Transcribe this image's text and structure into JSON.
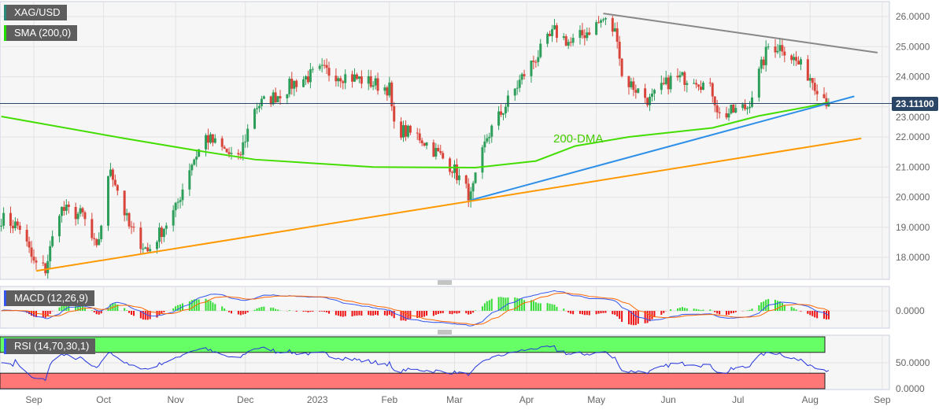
{
  "symbol": "XAG/USD",
  "indicator_sma": "SMA (200,0)",
  "indicator_macd": "MACD (12,26,9)",
  "indicator_rsi": "RSI (14,70,30,1)",
  "current_price": "23.11100",
  "annotation_dma": "200-DMA",
  "y_ticks": [
    "26.0000",
    "25.0000",
    "24.0000",
    "23.0000",
    "22.0000",
    "21.0000",
    "20.0000",
    "19.0000",
    "18.0000"
  ],
  "y_tick_values": [
    26,
    25,
    24,
    23,
    22,
    21,
    20,
    19,
    18
  ],
  "macd_ticks": [
    "0.0000"
  ],
  "rsi_ticks": [
    "50.0000",
    "0.0000"
  ],
  "x_labels": [
    {
      "t": "Sep",
      "d": "2022-09-01"
    },
    {
      "t": "Oct",
      "d": "2022-10-01"
    },
    {
      "t": "Nov",
      "d": "2022-11-01"
    },
    {
      "t": "Dec",
      "d": "2022-12-01"
    },
    {
      "t": "2023",
      "d": "2023-01-01"
    },
    {
      "t": "Feb",
      "d": "2023-02-01"
    },
    {
      "t": "Mar",
      "d": "2023-03-01"
    },
    {
      "t": "Apr",
      "d": "2023-04-01"
    },
    {
      "t": "May",
      "d": "2023-05-01"
    },
    {
      "t": "Jun",
      "d": "2023-06-01"
    },
    {
      "t": "Jul",
      "d": "2023-07-01"
    },
    {
      "t": "Aug",
      "d": "2023-08-01"
    },
    {
      "t": "Sep",
      "d": "2023-09-01"
    }
  ],
  "colors": {
    "up": "#2e9e5b",
    "down": "#d9443a",
    "sma": "#44dd00",
    "resistance": "#888888",
    "support_blue": "#2e8fe8",
    "support_orange": "#ff9900",
    "price_line": "#2b4566",
    "macd": "#3355ee",
    "signal": "#ff6600",
    "rsi_line": "#2233dd",
    "rsi_over": "#66ff66",
    "rsi_under": "#ff7777"
  },
  "chart_data": {
    "type": "candlestick",
    "price_path": [
      [
        "2022-08-18",
        19.3
      ],
      [
        "2022-08-26",
        19.0
      ],
      [
        "2022-09-01",
        17.8
      ],
      [
        "2022-09-06",
        17.6
      ],
      [
        "2022-09-12",
        19.6
      ],
      [
        "2022-09-22",
        19.4
      ],
      [
        "2022-09-28",
        18.2
      ],
      [
        "2022-10-04",
        21.0
      ],
      [
        "2022-10-12",
        19.0
      ],
      [
        "2022-10-20",
        18.2
      ],
      [
        "2022-11-01",
        19.6
      ],
      [
        "2022-11-07",
        21.0
      ],
      [
        "2022-11-14",
        22.0
      ],
      [
        "2022-11-28",
        21.2
      ],
      [
        "2022-12-05",
        23.0
      ],
      [
        "2022-12-15",
        23.4
      ],
      [
        "2022-12-22",
        23.8
      ],
      [
        "2023-01-03",
        24.2
      ],
      [
        "2023-01-20",
        23.9
      ],
      [
        "2023-02-01",
        23.6
      ],
      [
        "2023-02-03",
        22.3
      ],
      [
        "2023-02-14",
        22.0
      ],
      [
        "2023-02-28",
        21.0
      ],
      [
        "2023-03-08",
        20.0
      ],
      [
        "2023-03-15",
        22.0
      ],
      [
        "2023-03-31",
        24.1
      ],
      [
        "2023-04-13",
        25.5
      ],
      [
        "2023-04-20",
        25.1
      ],
      [
        "2023-05-04",
        25.9
      ],
      [
        "2023-05-10",
        25.4
      ],
      [
        "2023-05-12",
        24.0
      ],
      [
        "2023-05-24",
        23.2
      ],
      [
        "2023-06-02",
        23.9
      ],
      [
        "2023-06-12",
        24.0
      ],
      [
        "2023-06-20",
        23.5
      ],
      [
        "2023-06-23",
        22.7
      ],
      [
        "2023-07-05",
        23.0
      ],
      [
        "2023-07-14",
        25.0
      ],
      [
        "2023-07-20",
        25.0
      ],
      [
        "2023-08-01",
        24.0
      ],
      [
        "2023-08-09",
        23.111
      ]
    ],
    "sma200": [
      [
        "2022-08-18",
        22.68
      ],
      [
        "2022-10-10",
        21.95
      ],
      [
        "2022-11-10",
        21.55
      ],
      [
        "2022-12-05",
        21.25
      ],
      [
        "2023-01-25",
        21.0
      ],
      [
        "2023-03-10",
        20.98
      ],
      [
        "2023-04-05",
        21.2
      ],
      [
        "2023-04-22",
        21.7
      ],
      [
        "2023-05-15",
        22.0
      ],
      [
        "2023-06-20",
        22.3
      ],
      [
        "2023-07-10",
        22.7
      ],
      [
        "2023-07-31",
        23.0
      ],
      [
        "2023-08-09",
        23.15
      ]
    ],
    "trendlines": [
      {
        "id": "resistance",
        "from": [
          "2023-05-04",
          26.1
        ],
        "to": [
          "2023-08-30",
          24.8
        ],
        "color": "#888888"
      },
      {
        "id": "support-blue",
        "from": [
          "2023-03-08",
          19.9
        ],
        "to": [
          "2023-08-20",
          23.35
        ],
        "color": "#2e8fe8"
      },
      {
        "id": "support-orange",
        "from": [
          "2022-09-02",
          17.55
        ],
        "to": [
          "2023-08-23",
          21.95
        ],
        "color": "#ff9900"
      }
    ],
    "ylim": [
      17.4,
      26.4
    ],
    "rsi_levels": [
      30,
      70
    ]
  }
}
